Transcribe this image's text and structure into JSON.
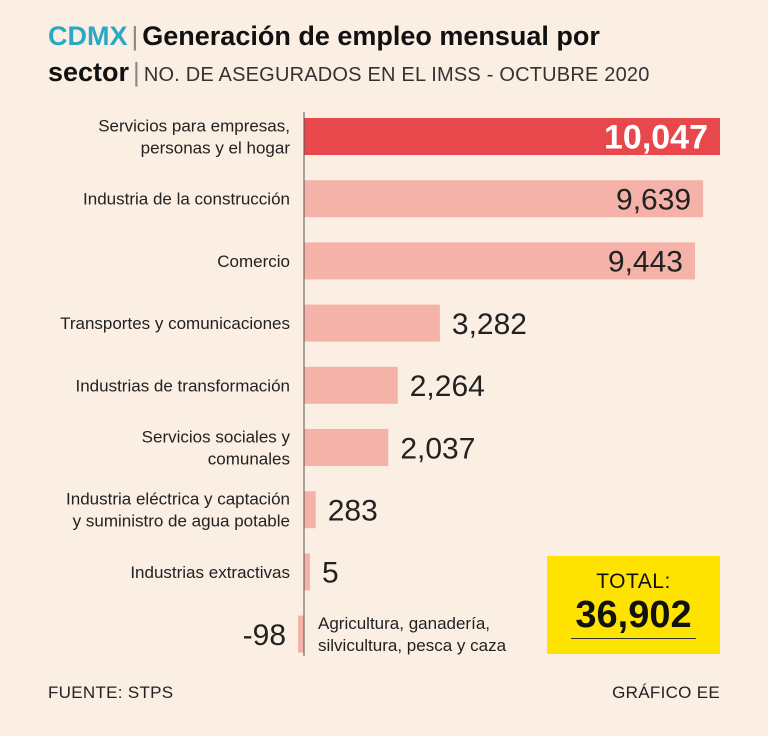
{
  "header": {
    "brand": "CDMX",
    "separator": "|",
    "title_line1": "Generación de empleo mensual por",
    "title_word2": "sector",
    "subtitle": "NO. DE ASEGURADOS EN EL IMSS - OCTUBRE 2020"
  },
  "chart_data": {
    "type": "bar",
    "orientation": "horizontal",
    "categories": [
      "Servicios para empresas, personas y el hogar",
      "Industria de la construcción",
      "Comercio",
      "Transportes y comunicaciones",
      "Industrias de transformación",
      "Servicios sociales y comunales",
      "Industria eléctrica y captación y suministro de agua potable",
      "Industrias extractivas",
      "Agricultura, ganadería, silvicultura, pesca y caza"
    ],
    "label_lines": [
      [
        "Servicios para empresas,",
        "personas y el hogar"
      ],
      [
        "Industria de la construcción"
      ],
      [
        "Comercio"
      ],
      [
        "Transportes y comunicaciones"
      ],
      [
        "Industrias de transformación"
      ],
      [
        "Servicios sociales y",
        "comunales"
      ],
      [
        "Industria eléctrica y captación",
        "y suministro de agua potable"
      ],
      [
        "Industrias extractivas"
      ],
      [
        "Agricultura, ganadería,",
        "silvicultura, pesca y caza"
      ]
    ],
    "values": [
      10047,
      9639,
      9443,
      3282,
      2264,
      2037,
      283,
      5,
      -98
    ],
    "value_labels": [
      "10,047",
      "9,639",
      "9,443",
      "3,282",
      "2,264",
      "2,037",
      "283",
      "5",
      "-98"
    ],
    "highlight_index": 0,
    "colors": {
      "highlight": "#e8474b",
      "normal": "#f5b2a8",
      "axis": "#555555"
    },
    "title": "Generación de empleo mensual por sector",
    "xlabel": "",
    "ylabel": ""
  },
  "total": {
    "label": "TOTAL:",
    "value": "36,902",
    "color": "#ffe300"
  },
  "footer": {
    "source": "FUENTE: STPS",
    "credit": "GRÁFICO EE"
  }
}
